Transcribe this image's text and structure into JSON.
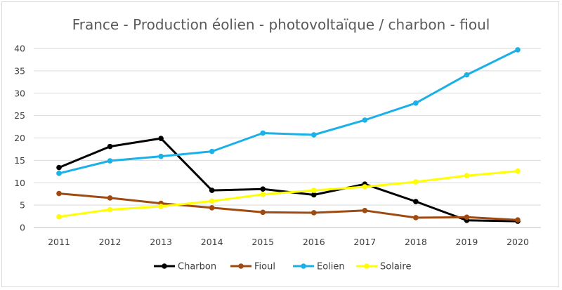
{
  "chart_data": {
    "type": "line",
    "title": "France - Production éolien - photovoltaïque / charbon - fioul",
    "xlabel": "",
    "ylabel": "",
    "categories": [
      "2011",
      "2012",
      "2013",
      "2014",
      "2015",
      "2016",
      "2017",
      "2018",
      "2019",
      "2020"
    ],
    "ylim": [
      0,
      40
    ],
    "yticks": [
      0,
      5,
      10,
      15,
      20,
      25,
      30,
      35,
      40
    ],
    "grid": true,
    "legend_position": "bottom",
    "series": [
      {
        "name": "Charbon",
        "color": "#000000",
        "values": [
          13.4,
          18.1,
          19.9,
          8.3,
          8.6,
          7.3,
          9.7,
          5.8,
          1.6,
          1.4
        ]
      },
      {
        "name": "Fioul",
        "color": "#9e4a11",
        "values": [
          7.6,
          6.6,
          5.4,
          4.4,
          3.4,
          3.3,
          3.8,
          2.2,
          2.3,
          1.7
        ]
      },
      {
        "name": "Eolien",
        "color": "#1ab0e8",
        "values": [
          12.1,
          14.9,
          15.9,
          17.0,
          21.1,
          20.7,
          24.0,
          27.8,
          34.1,
          39.7
        ]
      },
      {
        "name": "Solaire",
        "color": "#ffff00",
        "values": [
          2.4,
          4.0,
          4.7,
          5.9,
          7.4,
          8.3,
          9.1,
          10.2,
          11.6,
          12.6
        ]
      }
    ]
  }
}
